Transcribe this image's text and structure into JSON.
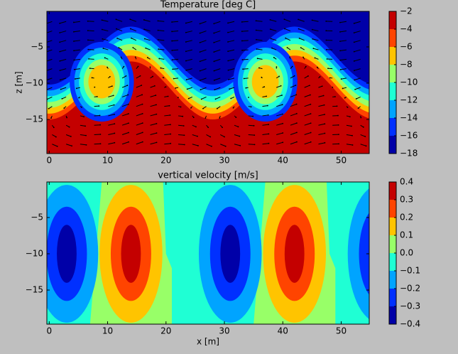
{
  "chart_data": [
    {
      "type": "contour",
      "title": "Temperature [deg C]",
      "ylabel": "z [m]",
      "xlim": [
        -0.4,
        54.8
      ],
      "ylim": [
        -19.7,
        -0.1
      ],
      "xticks": [
        0,
        10,
        20,
        30,
        40,
        50
      ],
      "yticks": [
        {
          "value": -5,
          "label": "−5"
        },
        {
          "value": -10,
          "label": "−10"
        },
        {
          "value": -15,
          "label": "−15"
        }
      ],
      "levels": [
        {
          "value": -18,
          "label": "−18"
        },
        {
          "value": -16,
          "label": "−16"
        },
        {
          "value": -14,
          "label": "−14"
        },
        {
          "value": -12,
          "label": "−12"
        },
        {
          "value": -10,
          "label": "−10"
        },
        {
          "value": -8,
          "label": "−8"
        },
        {
          "value": -6,
          "label": "−6"
        },
        {
          "value": -4,
          "label": "−4"
        },
        {
          "value": -2,
          "label": "−2"
        }
      ],
      "colors": [
        "#0000a8",
        "#0030ff",
        "#00a4ff",
        "#1fffd4",
        "#98ff68",
        "#ffc400",
        "#ff4400",
        "#c40000"
      ],
      "quiver": true
    },
    {
      "type": "contour",
      "title": "vertical velocity [m/s]",
      "xlabel": "x [m]",
      "xlim": [
        -0.4,
        54.8
      ],
      "ylim": [
        -19.7,
        -0.1
      ],
      "xticks": [
        0,
        10,
        20,
        30,
        40,
        50
      ],
      "yticks": [
        {
          "value": -5,
          "label": "−5"
        },
        {
          "value": -10,
          "label": "−10"
        },
        {
          "value": -15,
          "label": "−15"
        }
      ],
      "levels": [
        {
          "value": -0.4,
          "label": "−0.4"
        },
        {
          "value": -0.3,
          "label": "−0.3"
        },
        {
          "value": -0.2,
          "label": "−0.2"
        },
        {
          "value": -0.1,
          "label": "−0.1"
        },
        {
          "value": 0,
          "label": "0.0"
        },
        0.1,
        0.2,
        0.3,
        0.4
      ],
      "colors": [
        "#0000a8",
        "#0030ff",
        "#00a4ff",
        "#1fffd4",
        "#98ff68",
        "#ffc400",
        "#ff4400",
        "#c40000"
      ],
      "quiver": false
    }
  ]
}
